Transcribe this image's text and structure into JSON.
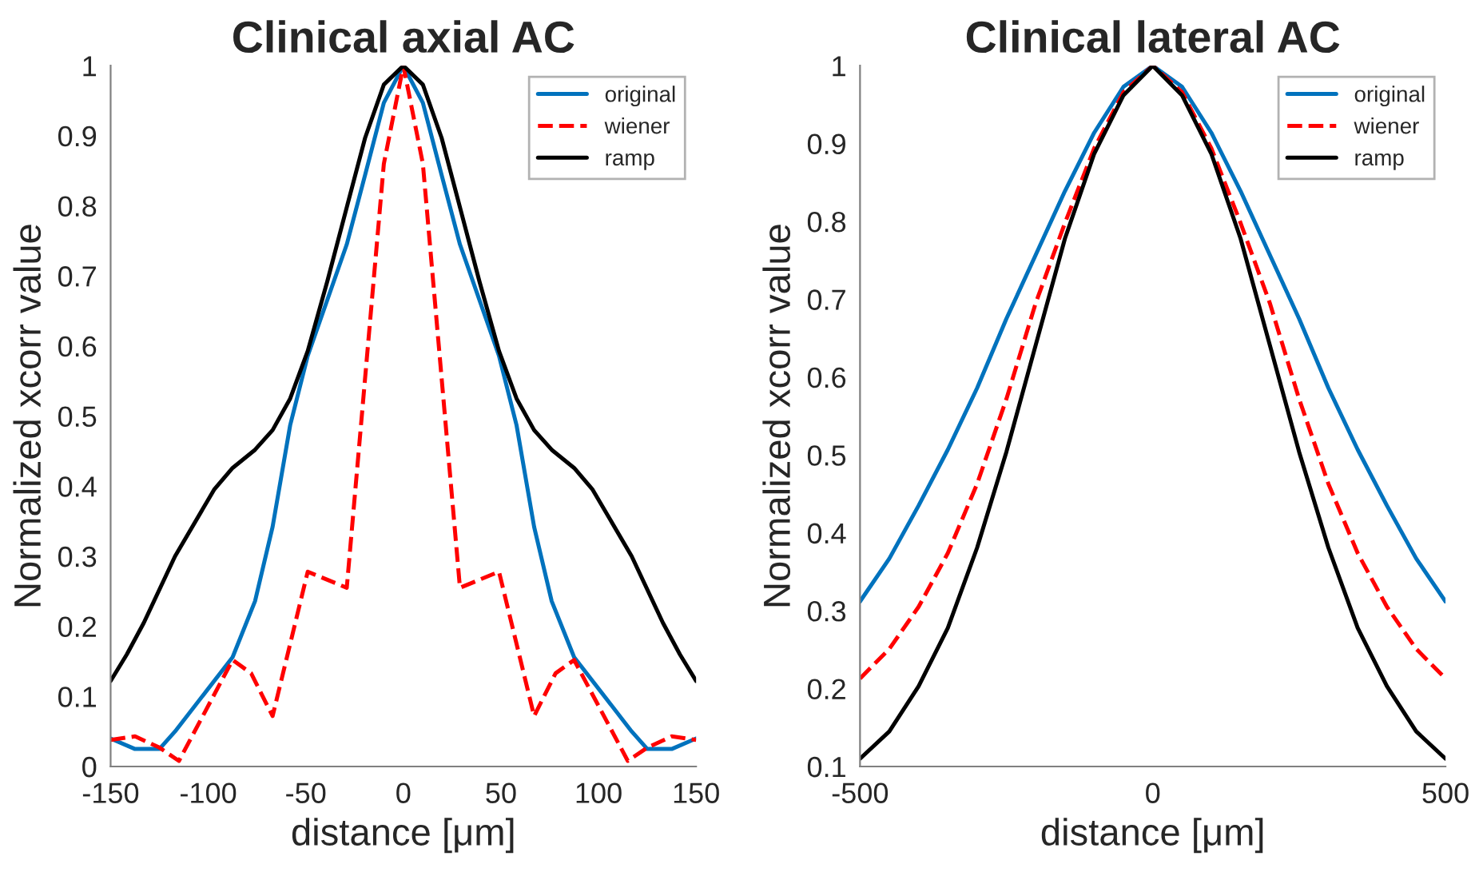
{
  "chart_data": [
    {
      "type": "line",
      "title": "Clinical axial AC",
      "xlabel": "distance [μm]",
      "ylabel": "Normalized xcorr value",
      "xlim": [
        -150,
        150
      ],
      "xticks": [
        -150,
        -100,
        -50,
        0,
        50,
        100,
        150
      ],
      "ylim": [
        0,
        1
      ],
      "yticks": [
        0,
        0.1,
        0.2,
        0.3,
        0.4,
        0.5,
        0.6,
        0.7,
        0.8,
        0.9,
        1
      ],
      "legend": "top right",
      "grid": false,
      "series": [
        {
          "name": "original",
          "color": "#0072bd",
          "line_style": "solid",
          "x": [
            -150,
            -137.5,
            -125,
            -117,
            -87.5,
            -76,
            -67,
            -58,
            -49,
            -29,
            -19.6,
            -10,
            0,
            10,
            19.6,
            29,
            49,
            58,
            67,
            76,
            87.5,
            117,
            125,
            137.5,
            150
          ],
          "values": [
            0.04,
            0.025,
            0.025,
            0.05,
            0.156,
            0.236,
            0.342,
            0.487,
            0.586,
            0.745,
            0.844,
            0.947,
            1.0,
            0.947,
            0.844,
            0.745,
            0.586,
            0.487,
            0.342,
            0.236,
            0.156,
            0.05,
            0.025,
            0.025,
            0.04
          ]
        },
        {
          "name": "wiener",
          "color": "#ff0000",
          "line_style": "dashed",
          "x": [
            -150,
            -137.5,
            -125,
            -115,
            -87.5,
            -78,
            -67,
            -49,
            -29,
            -10,
            0,
            10,
            29,
            49,
            67,
            78,
            87.5,
            115,
            125,
            137.5,
            150
          ],
          "values": [
            0.038,
            0.043,
            0.027,
            0.008,
            0.152,
            0.133,
            0.072,
            0.278,
            0.255,
            0.86,
            1.0,
            0.86,
            0.255,
            0.278,
            0.072,
            0.133,
            0.152,
            0.008,
            0.027,
            0.043,
            0.038
          ]
        },
        {
          "name": "ramp",
          "color": "#000000",
          "line_style": "solid",
          "x": [
            -150,
            -141.7,
            -133,
            -117,
            -97,
            -87.5,
            -76,
            -67,
            -58,
            -49,
            -39,
            -29,
            -19.6,
            -10,
            0,
            10,
            19.6,
            29,
            39,
            49,
            58,
            67,
            76,
            87.5,
            97,
            117,
            133,
            141.7,
            150
          ],
          "values": [
            0.122,
            0.16,
            0.205,
            0.3,
            0.395,
            0.426,
            0.452,
            0.48,
            0.525,
            0.593,
            0.692,
            0.798,
            0.897,
            0.973,
            1.0,
            0.973,
            0.897,
            0.798,
            0.692,
            0.593,
            0.525,
            0.48,
            0.452,
            0.426,
            0.395,
            0.3,
            0.205,
            0.16,
            0.122
          ]
        }
      ]
    },
    {
      "type": "line",
      "title": "Clinical lateral AC",
      "xlabel": "distance [μm]",
      "ylabel": "Normalized xcorr value",
      "xlim": [
        -500,
        500
      ],
      "xticks": [
        -500,
        0,
        500
      ],
      "ylim": [
        0.1,
        1
      ],
      "yticks": [
        0.1,
        0.2,
        0.3,
        0.4,
        0.5,
        0.6,
        0.7,
        0.8,
        0.9,
        1
      ],
      "legend": "top right",
      "grid": false,
      "series": [
        {
          "name": "original",
          "color": "#0072bd",
          "line_style": "solid",
          "x": [
            -500,
            -450,
            -400,
            -350,
            -300,
            -250,
            -200,
            -150,
            -100,
            -50,
            0,
            50,
            100,
            150,
            200,
            250,
            300,
            350,
            400,
            450,
            500
          ],
          "values": [
            0.312,
            0.367,
            0.435,
            0.507,
            0.586,
            0.675,
            0.757,
            0.839,
            0.914,
            0.973,
            1.0,
            0.973,
            0.914,
            0.839,
            0.757,
            0.675,
            0.586,
            0.507,
            0.435,
            0.367,
            0.312
          ]
        },
        {
          "name": "wiener",
          "color": "#ff0000",
          "line_style": "dashed",
          "x": [
            -500,
            -450,
            -400,
            -350,
            -300,
            -250,
            -200,
            -150,
            -100,
            -50,
            0,
            50,
            100,
            150,
            200,
            250,
            300,
            350,
            400,
            450,
            500
          ],
          "values": [
            0.213,
            0.251,
            0.305,
            0.374,
            0.463,
            0.572,
            0.695,
            0.798,
            0.894,
            0.966,
            1.0,
            0.966,
            0.894,
            0.798,
            0.695,
            0.572,
            0.463,
            0.374,
            0.305,
            0.251,
            0.213
          ]
        },
        {
          "name": "ramp",
          "color": "#000000",
          "line_style": "solid",
          "x": [
            -500,
            -450,
            -400,
            -350,
            -300,
            -250,
            -200,
            -150,
            -100,
            -50,
            0,
            50,
            100,
            150,
            200,
            250,
            300,
            350,
            400,
            450,
            500
          ],
          "values": [
            0.11,
            0.145,
            0.203,
            0.278,
            0.381,
            0.504,
            0.641,
            0.778,
            0.887,
            0.962,
            1.0,
            0.962,
            0.887,
            0.778,
            0.641,
            0.504,
            0.381,
            0.278,
            0.203,
            0.145,
            0.11
          ]
        }
      ]
    }
  ]
}
